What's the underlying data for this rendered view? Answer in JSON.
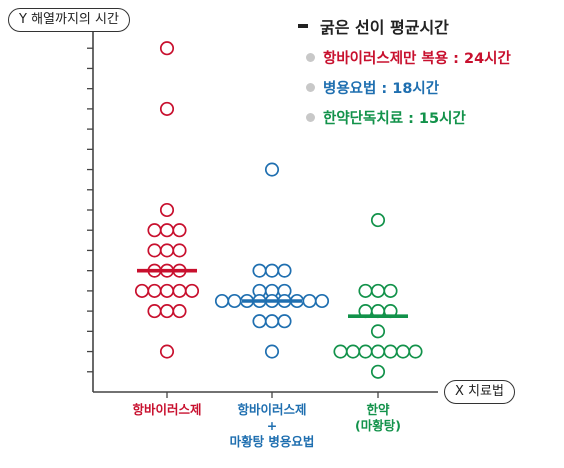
{
  "y_axis_pill": "Y 해열까지의 시간",
  "x_axis_pill": "X 치료법",
  "colors": {
    "red": "#c8102e",
    "blue": "#1f6fb0",
    "green": "#12924a",
    "axis": "#444444"
  },
  "legend": {
    "title": "굵은 선이 평균시간",
    "items": [
      {
        "label": "항바이러스제만 복용 : 24시간",
        "color": "#c8102e"
      },
      {
        "label": "병용요법 : 18시간",
        "color": "#1f6fb0"
      },
      {
        "label": "한약단독치료 : 15시간",
        "color": "#12924a"
      }
    ]
  },
  "categories": [
    {
      "line1": "항바이러스제",
      "line2": "",
      "line3": "",
      "color": "#c8102e"
    },
    {
      "line1": "항바이러스제",
      "line2": "+",
      "line3": "마황탕 병용요법",
      "color": "#1f6fb0"
    },
    {
      "line1": "한약",
      "line2": "(마황탕)",
      "line3": "",
      "color": "#12924a"
    }
  ],
  "chart_data": {
    "type": "scatter",
    "ylim": [
      0,
      72
    ],
    "series": [
      {
        "category": "항바이러스제",
        "mean": 24,
        "color": "#c8102e",
        "points": [
          [
            0,
            68
          ],
          [
            0,
            56
          ],
          [
            0,
            36
          ],
          [
            -1,
            32
          ],
          [
            0,
            32
          ],
          [
            1,
            32
          ],
          [
            -1,
            28
          ],
          [
            0,
            28
          ],
          [
            1,
            28
          ],
          [
            -1,
            24
          ],
          [
            0,
            24
          ],
          [
            1,
            24
          ],
          [
            -2,
            20
          ],
          [
            -1,
            20
          ],
          [
            0,
            20
          ],
          [
            1,
            20
          ],
          [
            2,
            20
          ],
          [
            -1,
            16
          ],
          [
            0,
            16
          ],
          [
            1,
            16
          ],
          [
            0,
            8
          ]
        ]
      },
      {
        "category": "항바이러스제 + 마황탕 병용요법",
        "mean": 18,
        "color": "#1f6fb0",
        "points": [
          [
            0,
            44
          ],
          [
            -1,
            24
          ],
          [
            0,
            24
          ],
          [
            1,
            24
          ],
          [
            -1,
            20
          ],
          [
            0,
            20
          ],
          [
            1,
            20
          ],
          [
            -4,
            18
          ],
          [
            -3,
            18
          ],
          [
            -2,
            18
          ],
          [
            -1,
            18
          ],
          [
            0,
            18
          ],
          [
            1,
            18
          ],
          [
            2,
            18
          ],
          [
            3,
            18
          ],
          [
            4,
            18
          ],
          [
            -1,
            14
          ],
          [
            0,
            14
          ],
          [
            1,
            14
          ],
          [
            0,
            8
          ]
        ]
      },
      {
        "category": "한약 (마황탕)",
        "mean": 15,
        "color": "#12924a",
        "points": [
          [
            0,
            34
          ],
          [
            -1,
            20
          ],
          [
            0,
            20
          ],
          [
            1,
            20
          ],
          [
            -1,
            16
          ],
          [
            0,
            16
          ],
          [
            1,
            16
          ],
          [
            0,
            12
          ],
          [
            -3,
            8
          ],
          [
            -2,
            8
          ],
          [
            -1,
            8
          ],
          [
            0,
            8
          ],
          [
            1,
            8
          ],
          [
            2,
            8
          ],
          [
            3,
            8
          ],
          [
            0,
            4
          ]
        ]
      }
    ]
  }
}
